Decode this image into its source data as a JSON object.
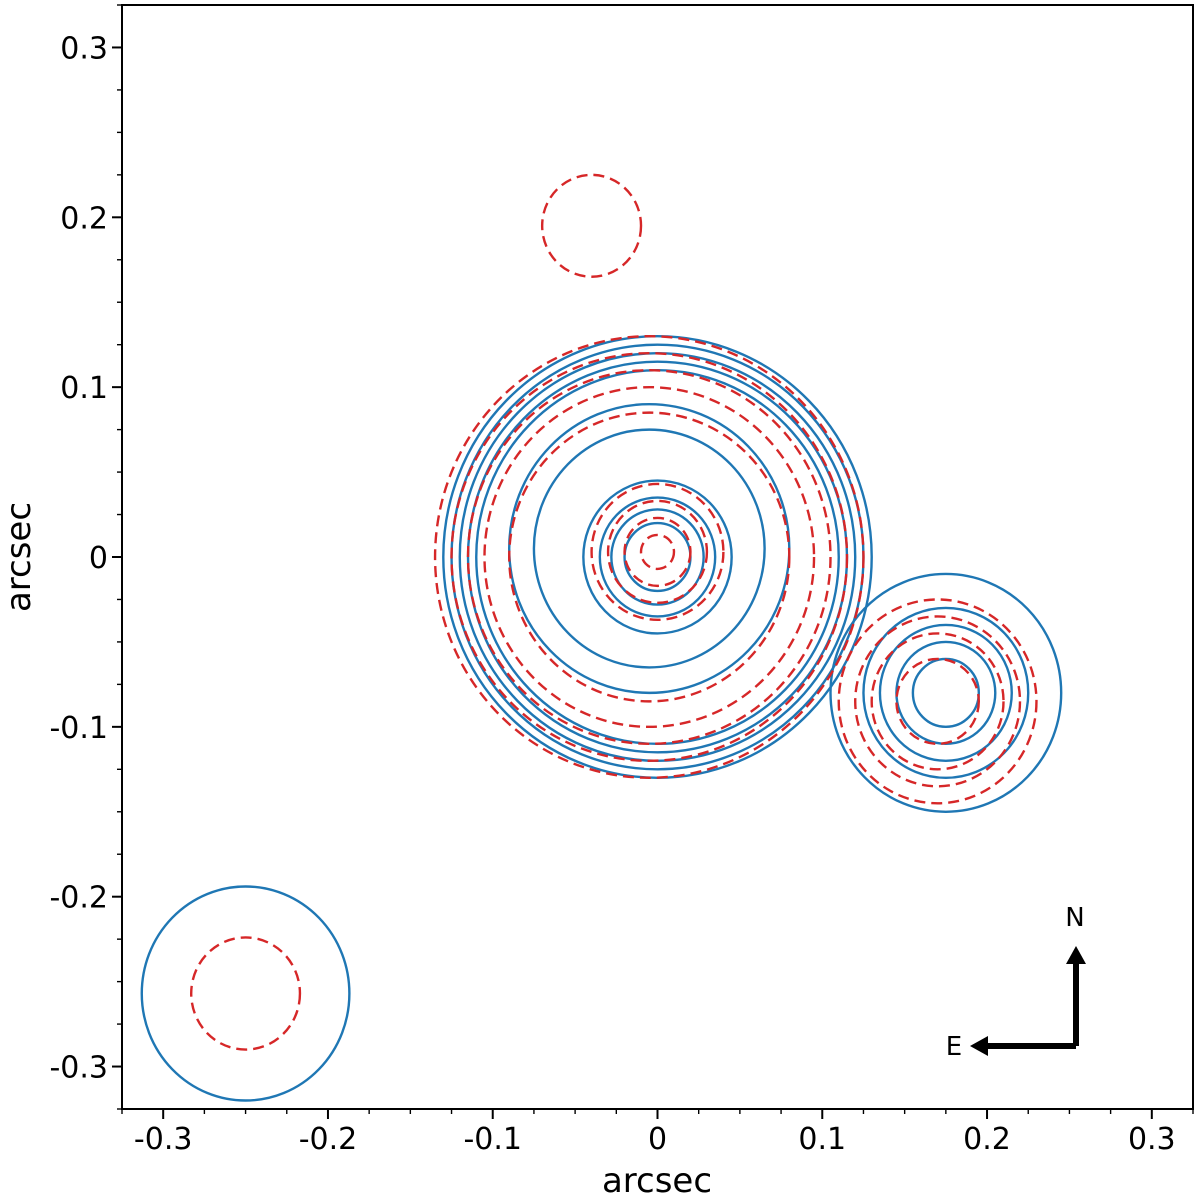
{
  "chart_data": {
    "type": "contour",
    "title": "",
    "xlabel": "arcsec",
    "ylabel": "arcsec",
    "xlim": [
      -0.325,
      0.325
    ],
    "ylim": [
      -0.325,
      0.325
    ],
    "xticks": [
      -0.3,
      -0.2,
      -0.1,
      0,
      0.1,
      0.2,
      0.3
    ],
    "xtick_labels": [
      "-0.3",
      "-0.2",
      "-0.1",
      "0",
      "0.1",
      "0.2",
      "0.3"
    ],
    "yticks": [
      -0.3,
      -0.2,
      -0.1,
      0,
      0.1,
      0.2,
      0.3
    ],
    "ytick_labels": [
      "-0.3",
      "-0.2",
      "-0.1",
      "0",
      "0.1",
      "0.2",
      "0.3"
    ],
    "grid": false,
    "legend": "none",
    "series": [
      {
        "color": "#1f77b4",
        "linestyle": "solid",
        "components": [
          {
            "center": [
              0.0,
              0.0
            ],
            "contour_radii": [
              0.02,
              0.028,
              0.035,
              0.045
            ]
          },
          {
            "center": [
              -0.005,
              0.005
            ],
            "contour_radii": [
              0.07,
              0.085
            ]
          },
          {
            "center": [
              0.0,
              0.0
            ],
            "contour_radii": [
              0.11,
              0.115,
              0.12,
              0.125,
              0.13
            ]
          },
          {
            "center": [
              0.175,
              -0.08
            ],
            "contour_radii": [
              0.02,
              0.03,
              0.04,
              0.05,
              0.07
            ]
          }
        ],
        "beam": {
          "center": [
            -0.25,
            -0.257
          ],
          "radius": 0.063
        }
      },
      {
        "color": "#d62728",
        "linestyle": "dashed",
        "components": [
          {
            "center": [
              0.0,
              0.003
            ],
            "contour_radii": [
              0.01,
              0.02,
              0.03,
              0.04
            ]
          },
          {
            "center": [
              -0.005,
              0.0
            ],
            "contour_radii": [
              0.085,
              0.1,
              0.11,
              0.12,
              0.13
            ]
          },
          {
            "center": [
              -0.04,
              0.195
            ],
            "contour_radii": [
              0.03
            ]
          },
          {
            "center": [
              0.17,
              -0.085
            ],
            "contour_radii": [
              0.025,
              0.04,
              0.05,
              0.06
            ]
          }
        ],
        "beam": {
          "center": [
            -0.25,
            -0.257
          ],
          "radius": 0.033
        }
      }
    ],
    "compass": {
      "north_label": "N",
      "east_label": "E"
    }
  }
}
